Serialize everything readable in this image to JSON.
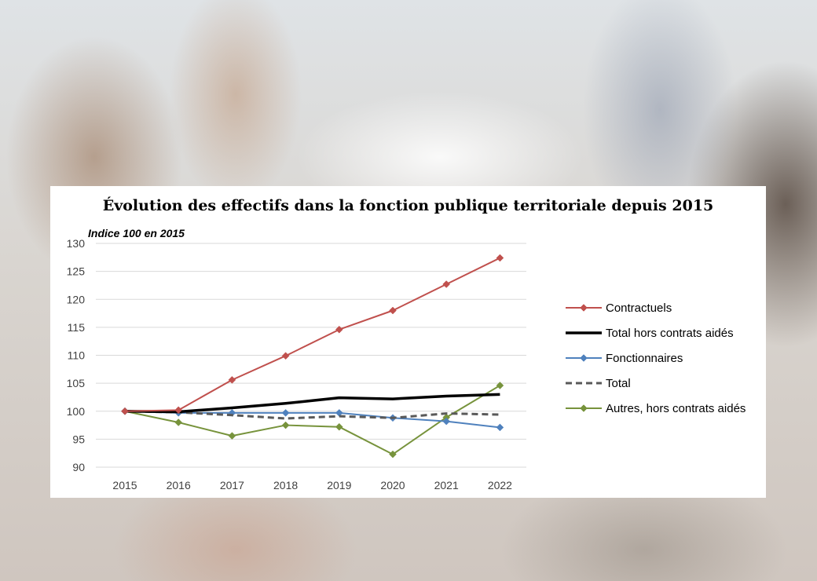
{
  "chart_data": {
    "type": "line",
    "title": "Évolution des effectifs dans la fonction publique territoriale depuis 2015",
    "subtitle": "Indice 100 en 2015",
    "xlabel": "",
    "ylabel": "",
    "x": [
      "2015",
      "2016",
      "2017",
      "2018",
      "2019",
      "2020",
      "2021",
      "2022"
    ],
    "ylim": [
      90,
      130
    ],
    "yticks": [
      90,
      95,
      100,
      105,
      110,
      115,
      120,
      125,
      130
    ],
    "grid": true,
    "legend_position": "right",
    "series": [
      {
        "name": "Contractuels",
        "values": [
          100,
          100.2,
          105.6,
          109.9,
          114.6,
          118.0,
          122.7,
          127.4
        ],
        "color": "#c0504d",
        "style": "solid",
        "marker": "diamond"
      },
      {
        "name": "Total hors contrats aidés",
        "values": [
          100,
          99.9,
          100.6,
          101.4,
          102.4,
          102.2,
          102.7,
          103.0
        ],
        "color": "#000000",
        "style": "solid",
        "marker": "none"
      },
      {
        "name": "Fonctionnaires",
        "values": [
          100,
          99.7,
          99.7,
          99.7,
          99.7,
          98.8,
          98.2,
          97.1
        ],
        "color": "#4f81bd",
        "style": "solid",
        "marker": "diamond"
      },
      {
        "name": "Total",
        "values": [
          100,
          99.8,
          99.3,
          98.7,
          99.1,
          98.8,
          99.6,
          99.4
        ],
        "color": "#595959",
        "style": "dashed",
        "marker": "none"
      },
      {
        "name": "Autres, hors contrats aidés",
        "values": [
          100,
          98.0,
          95.6,
          97.5,
          97.2,
          92.3,
          98.9,
          104.6
        ],
        "color": "#77933c",
        "style": "solid",
        "marker": "diamond"
      }
    ]
  }
}
